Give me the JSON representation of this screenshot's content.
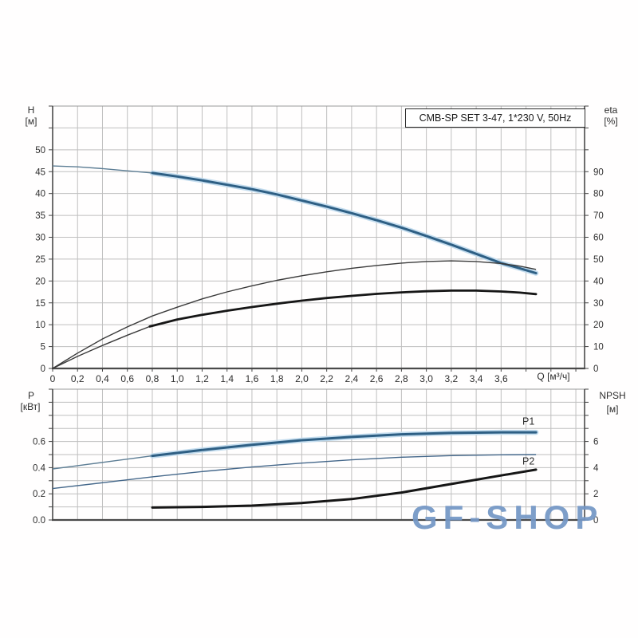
{
  "watermark": {
    "text": "GF-SHOP",
    "color": "#7497c6"
  },
  "chart_data": [
    {
      "name": "hq-efficiency-chart",
      "type": "line",
      "title": "CMB-SP SET 3-47, 1*230 V, 50Hz",
      "xlabel": "Q [м³/ч]",
      "x_axis": {
        "range": [
          0,
          4.27
        ],
        "grid_step": 0.2,
        "tick_values": [
          0,
          0.2,
          0.4,
          0.6,
          0.8,
          1,
          1.2,
          1.4,
          1.6,
          1.8,
          2,
          2.2,
          2.4,
          2.6,
          2.8,
          3,
          3.2,
          3.4,
          3.6
        ],
        "tick_labels": [
          "0",
          "0,2",
          "0,4",
          "0,6",
          "0,8",
          "1,0",
          "1,2",
          "1,4",
          "1,6",
          "1,8",
          "2,0",
          "2,2",
          "2,4",
          "2,6",
          "2,8",
          "3,0",
          "3,2",
          "3,4",
          "3,6"
        ]
      },
      "left_axis": {
        "label": "H",
        "unit": "[м]",
        "range": [
          0,
          60
        ],
        "grid_step": 5,
        "minor_tick_step": 5,
        "tick_values": [
          0,
          5,
          10,
          15,
          20,
          25,
          30,
          35,
          40,
          45,
          50
        ],
        "tick_labels": [
          "0",
          "5",
          "10",
          "15",
          "20",
          "25",
          "30",
          "35",
          "40",
          "45",
          "50"
        ]
      },
      "right_axis": {
        "label": "eta",
        "unit": "[%]",
        "range": [
          0,
          120
        ],
        "minor_tick_step": 10,
        "tick_values": [
          0,
          10,
          20,
          30,
          40,
          50,
          60,
          70,
          80,
          90
        ],
        "tick_labels": [
          "0",
          "10",
          "20",
          "30",
          "40",
          "50",
          "60",
          "70",
          "80",
          "90"
        ]
      },
      "series": [
        {
          "name": "head-curve",
          "axis": "left",
          "color": "#2e5f84",
          "halo": "#c3dcee",
          "thin_color": "#5c7d94",
          "thick_width": 3,
          "thin": [
            [
              0,
              46.3
            ],
            [
              0.2,
              46.1
            ],
            [
              0.4,
              45.7
            ],
            [
              0.6,
              45.2
            ],
            [
              0.8,
              44.7
            ]
          ],
          "thick": [
            [
              0.8,
              44.7
            ],
            [
              1,
              43.9
            ],
            [
              1.2,
              43
            ],
            [
              1.4,
              42
            ],
            [
              1.6,
              41
            ],
            [
              1.8,
              39.8
            ],
            [
              2,
              38.4
            ],
            [
              2.2,
              37
            ],
            [
              2.4,
              35.5
            ],
            [
              2.6,
              33.9
            ],
            [
              2.8,
              32.2
            ],
            [
              3,
              30.3
            ],
            [
              3.2,
              28.3
            ],
            [
              3.4,
              26.2
            ],
            [
              3.6,
              24.1
            ],
            [
              3.75,
              22.9
            ],
            [
              3.88,
              21.8
            ]
          ]
        },
        {
          "name": "efficiency-pump-curve",
          "axis": "right",
          "color": "#3a3a3a",
          "thick_width": 1.5,
          "thin": [
            [
              0,
              0
            ],
            [
              0.2,
              7
            ],
            [
              0.4,
              13.5
            ],
            [
              0.6,
              19
            ],
            [
              0.8,
              24
            ],
            [
              1,
              28
            ],
            [
              1.2,
              31.8
            ],
            [
              1.4,
              35
            ],
            [
              1.6,
              37.8
            ],
            [
              1.8,
              40.3
            ],
            [
              2,
              42.4
            ],
            [
              2.2,
              44.2
            ],
            [
              2.4,
              45.8
            ],
            [
              2.6,
              47.1
            ],
            [
              2.8,
              48.2
            ],
            [
              3,
              48.9
            ],
            [
              3.2,
              49.2
            ],
            [
              3.4,
              48.9
            ],
            [
              3.6,
              48
            ],
            [
              3.75,
              46.8
            ],
            [
              3.88,
              45.3
            ]
          ],
          "thick": []
        },
        {
          "name": "efficiency-pump-motor-curve",
          "axis": "right",
          "color": "#161616",
          "thin_color": "#3a3a3a",
          "thick_width": 2.8,
          "thin": [
            [
              0,
              0
            ],
            [
              0.2,
              5.5
            ],
            [
              0.4,
              10.5
            ],
            [
              0.6,
              15.2
            ],
            [
              0.78,
              19.2
            ]
          ],
          "thick": [
            [
              0.78,
              19.2
            ],
            [
              1,
              22.4
            ],
            [
              1.2,
              24.5
            ],
            [
              1.4,
              26.4
            ],
            [
              1.6,
              28.1
            ],
            [
              1.8,
              29.6
            ],
            [
              2,
              31
            ],
            [
              2.2,
              32.2
            ],
            [
              2.4,
              33.2
            ],
            [
              2.6,
              34.1
            ],
            [
              2.8,
              34.8
            ],
            [
              3,
              35.3
            ],
            [
              3.2,
              35.6
            ],
            [
              3.4,
              35.6
            ],
            [
              3.6,
              35.2
            ],
            [
              3.75,
              34.7
            ],
            [
              3.88,
              34
            ]
          ]
        }
      ]
    },
    {
      "name": "power-npsh-chart",
      "type": "line",
      "xlabel": "",
      "x_axis": {
        "range": [
          0,
          4.27
        ],
        "grid_step": 0.2,
        "tick_values": [],
        "tick_labels": []
      },
      "left_axis": {
        "label": "P",
        "unit": "[кВт]",
        "range": [
          0,
          1
        ],
        "grid_step": 0.1,
        "minor_tick_step": 0.1,
        "tick_values": [
          0,
          0.2,
          0.4,
          0.6
        ],
        "tick_labels": [
          "0.0",
          "0.2",
          "0.4",
          "0.6"
        ]
      },
      "right_axis": {
        "label": "NPSH",
        "unit": "[м]",
        "range": [
          0,
          10
        ],
        "minor_tick_step": 1,
        "tick_values": [
          0,
          2,
          4,
          6
        ],
        "tick_labels": [
          "0",
          "2",
          "4",
          "6"
        ]
      },
      "series": [
        {
          "name": "p1-power-curve",
          "axis": "left",
          "color": "#2e5f84",
          "halo": "#c3dcee",
          "thin_color": "#5c7d94",
          "thick_width": 3,
          "label": {
            "text": "P1",
            "q": 3.82,
            "v": 0.73
          },
          "thin": [
            [
              0,
              0.39
            ],
            [
              0.2,
              0.415
            ],
            [
              0.4,
              0.44
            ],
            [
              0.6,
              0.465
            ],
            [
              0.8,
              0.49
            ]
          ],
          "thick": [
            [
              0.8,
              0.49
            ],
            [
              1.2,
              0.535
            ],
            [
              1.6,
              0.575
            ],
            [
              2,
              0.61
            ],
            [
              2.4,
              0.635
            ],
            [
              2.8,
              0.655
            ],
            [
              3.2,
              0.665
            ],
            [
              3.6,
              0.67
            ],
            [
              3.88,
              0.67
            ]
          ]
        },
        {
          "name": "p2-power-curve",
          "axis": "left",
          "color": "#44678a",
          "thick_width": 1.5,
          "label": {
            "text": "P2",
            "q": 3.82,
            "v": 0.425
          },
          "thin": [
            [
              0,
              0.24
            ],
            [
              0.4,
              0.285
            ],
            [
              0.8,
              0.33
            ],
            [
              1.2,
              0.37
            ],
            [
              1.6,
              0.405
            ],
            [
              2,
              0.435
            ],
            [
              2.4,
              0.46
            ],
            [
              2.8,
              0.48
            ],
            [
              3.2,
              0.492
            ],
            [
              3.6,
              0.498
            ],
            [
              3.88,
              0.5
            ]
          ],
          "thick": []
        },
        {
          "name": "npsh-curve",
          "axis": "right",
          "color": "#161616",
          "thick_width": 3,
          "thin": [],
          "thick": [
            [
              0.8,
              0.95
            ],
            [
              1.2,
              1
            ],
            [
              1.6,
              1.1
            ],
            [
              2,
              1.3
            ],
            [
              2.4,
              1.6
            ],
            [
              2.8,
              2.1
            ],
            [
              3.2,
              2.75
            ],
            [
              3.6,
              3.4
            ],
            [
              3.88,
              3.85
            ]
          ]
        }
      ]
    }
  ]
}
